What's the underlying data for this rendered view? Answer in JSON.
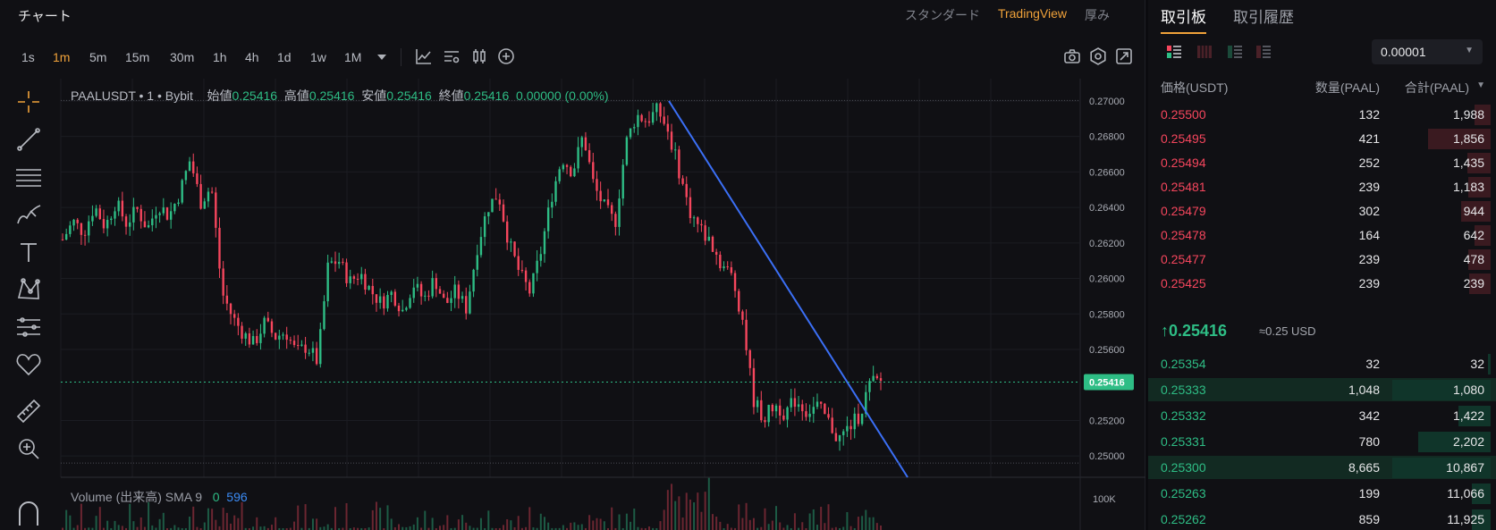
{
  "chart_header": {
    "title": "チャート",
    "views": [
      "スタンダード",
      "TradingView",
      "厚み"
    ],
    "active_view": "TradingView"
  },
  "timeframes": [
    "1s",
    "1m",
    "5m",
    "15m",
    "30m",
    "1h",
    "4h",
    "1d",
    "1w",
    "1M"
  ],
  "active_timeframe": "1m",
  "toolbar_icons": [
    "dropdown-icon",
    "indicators-icon",
    "template-icon",
    "candle-type-icon",
    "add-icon",
    "camera-icon",
    "settings-icon",
    "fullscreen-icon"
  ],
  "draw_tools": [
    "crosshair-icon",
    "trendline-icon",
    "fib-icon",
    "brush-icon",
    "text-icon",
    "pattern-icon",
    "forecast-icon",
    "favorite-icon",
    "ruler-icon",
    "zoom-icon",
    "magnet-icon"
  ],
  "legend": {
    "symbol": "PAALUSDT • 1 • Bybit",
    "open_label": "始値",
    "open": "0.25416",
    "high_label": "高値",
    "high": "0.25416",
    "low_label": "安値",
    "low": "0.25416",
    "close_label": "終値",
    "close": "0.25416",
    "change": "0.00000 (0.00%)"
  },
  "volume_legend": {
    "label": "Volume (出来高) SMA 9",
    "v1": "0",
    "v2": "596"
  },
  "last_price_tag": "0.25416",
  "chart_data": {
    "type": "candlestick",
    "symbol": "PAALUSDT",
    "interval": "1m",
    "y_ticks": [
      "0.27000",
      "0.26800",
      "0.26600",
      "0.26400",
      "0.26200",
      "0.26000",
      "0.25800",
      "0.25600",
      "0.25200",
      "0.25000"
    ],
    "ylim": [
      0.2488,
      0.2704
    ],
    "volume_tick": "100K",
    "last_price": 0.25416,
    "price_path": [
      0.2622,
      0.2632,
      0.2626,
      0.2641,
      0.2629,
      0.2643,
      0.2631,
      0.2639,
      0.2628,
      0.2642,
      0.2635,
      0.2648,
      0.2667,
      0.2643,
      0.2652,
      0.2592,
      0.2578,
      0.2569,
      0.2563,
      0.2575,
      0.2567,
      0.257,
      0.2558,
      0.2562,
      0.2553,
      0.2608,
      0.261,
      0.2598,
      0.2603,
      0.2593,
      0.2586,
      0.2592,
      0.2582,
      0.2597,
      0.2588,
      0.26,
      0.2585,
      0.2593,
      0.2583,
      0.2617,
      0.264,
      0.2648,
      0.262,
      0.2603,
      0.2592,
      0.2615,
      0.2646,
      0.2668,
      0.266,
      0.2681,
      0.2652,
      0.264,
      0.2631,
      0.2676,
      0.2692,
      0.2689,
      0.2695,
      0.2683,
      0.2661,
      0.2638,
      0.2628,
      0.262,
      0.2608,
      0.2601,
      0.2577,
      0.2532,
      0.2521,
      0.2529,
      0.2524,
      0.2532,
      0.2525,
      0.2528,
      0.252,
      0.2509,
      0.2516,
      0.2523,
      0.2541,
      0.2542
    ],
    "trendline": {
      "from": 0.27,
      "to": 0.2492
    }
  },
  "orderbook": {
    "tabs": [
      "取引板",
      "取引履歴"
    ],
    "active_tab": "取引板",
    "precision": "0.00001",
    "headers": {
      "price": "価格(USDT)",
      "qty": "数量(PAAL)",
      "total": "合計(PAAL)"
    },
    "asks": [
      {
        "price": "0.25500",
        "qty": "132",
        "total": "1,988",
        "depth": 0.16
      },
      {
        "price": "0.25495",
        "qty": "421",
        "total": "1,856",
        "depth": 0.64
      },
      {
        "price": "0.25494",
        "qty": "252",
        "total": "1,435",
        "depth": 0.24
      },
      {
        "price": "0.25481",
        "qty": "239",
        "total": "1,183",
        "depth": 0.23
      },
      {
        "price": "0.25479",
        "qty": "302",
        "total": "944",
        "depth": 0.3
      },
      {
        "price": "0.25478",
        "qty": "164",
        "total": "642",
        "depth": 0.16
      },
      {
        "price": "0.25477",
        "qty": "239",
        "total": "478",
        "depth": 0.23
      },
      {
        "price": "0.25425",
        "qty": "239",
        "total": "239",
        "depth": 0.22
      }
    ],
    "last_price": "0.25416",
    "last_usd": "≈0.25 USD",
    "bids": [
      {
        "price": "0.25354",
        "qty": "32",
        "total": "32",
        "depth": 0.03,
        "hl": false
      },
      {
        "price": "0.25333",
        "qty": "1,048",
        "total": "1,080",
        "depth": 1.0,
        "hl": true
      },
      {
        "price": "0.25332",
        "qty": "342",
        "total": "1,422",
        "depth": 0.33,
        "hl": false
      },
      {
        "price": "0.25331",
        "qty": "780",
        "total": "2,202",
        "depth": 0.74,
        "hl": false
      },
      {
        "price": "0.25300",
        "qty": "8,665",
        "total": "10,867",
        "depth": 1.0,
        "hl": true
      },
      {
        "price": "0.25263",
        "qty": "199",
        "total": "11,066",
        "depth": 0.19,
        "hl": false
      },
      {
        "price": "0.25262",
        "qty": "859",
        "total": "11,925",
        "depth": 0.19,
        "hl": false
      }
    ]
  },
  "colors": {
    "accent": "#f0a23a",
    "up": "#2ebd85",
    "down": "#f6465d",
    "trend": "#3b6ff5",
    "bg": "#101014"
  }
}
